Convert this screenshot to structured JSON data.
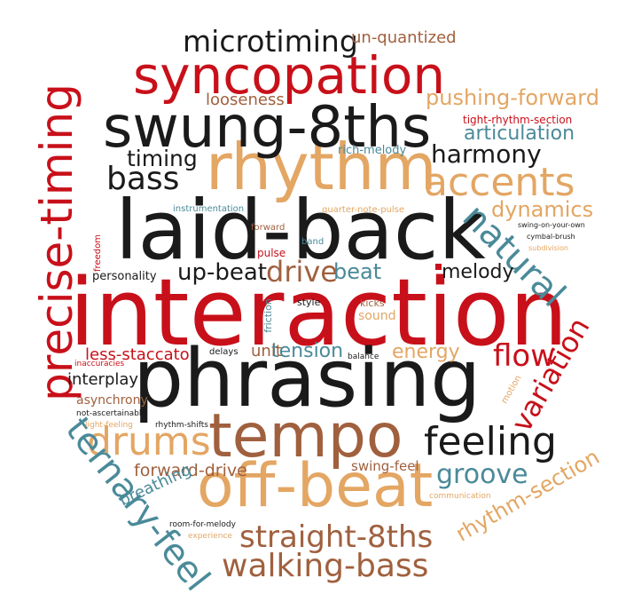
{
  "palette": {
    "red": "#c8101a",
    "black": "#1a1a1a",
    "tan": "#e3a663",
    "brown": "#a0603e",
    "teal": "#4a8a99"
  },
  "words": [
    {
      "text": "interaction",
      "color": "red"
    },
    {
      "text": "phrasing",
      "color": "black"
    },
    {
      "text": "laid-back",
      "color": "black"
    },
    {
      "text": "tempo",
      "color": "brown"
    },
    {
      "text": "rhythm",
      "color": "tan"
    },
    {
      "text": "swung-8ths",
      "color": "black"
    },
    {
      "text": "off-beat",
      "color": "tan"
    },
    {
      "text": "syncopation",
      "color": "red"
    },
    {
      "text": "precise-timing",
      "color": "red"
    },
    {
      "text": "drums",
      "color": "tan"
    },
    {
      "text": "feeling",
      "color": "black"
    },
    {
      "text": "natural",
      "color": "teal"
    },
    {
      "text": "ternary-feel",
      "color": "teal"
    },
    {
      "text": "accents",
      "color": "tan"
    },
    {
      "text": "straight-8ths",
      "color": "brown"
    },
    {
      "text": "walking-bass",
      "color": "brown"
    },
    {
      "text": "microtiming",
      "color": "black"
    },
    {
      "text": "bass",
      "color": "black"
    },
    {
      "text": "drive",
      "color": "brown"
    },
    {
      "text": "flow",
      "color": "red"
    },
    {
      "text": "variation",
      "color": "red"
    },
    {
      "text": "groove",
      "color": "teal"
    },
    {
      "text": "harmony",
      "color": "black"
    },
    {
      "text": "timing",
      "color": "black"
    },
    {
      "text": "rhythm-section",
      "color": "tan"
    },
    {
      "text": "pushing-forward",
      "color": "tan"
    },
    {
      "text": "articulation",
      "color": "teal"
    },
    {
      "text": "dynamics",
      "color": "tan"
    },
    {
      "text": "un-quantized",
      "color": "brown"
    },
    {
      "text": "looseness",
      "color": "brown"
    },
    {
      "text": "up-beat",
      "color": "black"
    },
    {
      "text": "beat",
      "color": "teal"
    },
    {
      "text": "melody",
      "color": "black"
    },
    {
      "text": "tension",
      "color": "teal"
    },
    {
      "text": "energy",
      "color": "tan"
    },
    {
      "text": "forward-drive",
      "color": "brown"
    },
    {
      "text": "breathing",
      "color": "teal"
    },
    {
      "text": "less-staccato",
      "color": "red"
    },
    {
      "text": "interplay",
      "color": "black"
    },
    {
      "text": "asynchrony",
      "color": "brown"
    },
    {
      "text": "unit",
      "color": "brown"
    },
    {
      "text": "sound",
      "color": "tan"
    },
    {
      "text": "swing-feel",
      "color": "brown"
    },
    {
      "text": "tight-rhythm-section",
      "color": "red"
    },
    {
      "text": "rich-melody",
      "color": "teal"
    },
    {
      "text": "quarter-note-pulse",
      "color": "tan"
    },
    {
      "text": "instrumentation",
      "color": "teal"
    },
    {
      "text": "swing-on-your-own",
      "color": "black"
    },
    {
      "text": "cymbal-brush",
      "color": "black"
    },
    {
      "text": "subdivision",
      "color": "tan"
    },
    {
      "text": "pulse",
      "color": "red"
    },
    {
      "text": "forward",
      "color": "brown"
    },
    {
      "text": "band",
      "color": "teal"
    },
    {
      "text": "personality",
      "color": "black"
    },
    {
      "text": "freedom",
      "color": "red"
    },
    {
      "text": "friction",
      "color": "teal"
    },
    {
      "text": "style",
      "color": "black"
    },
    {
      "text": "kicks",
      "color": "brown"
    },
    {
      "text": "delays",
      "color": "black"
    },
    {
      "text": "balance",
      "color": "black"
    },
    {
      "text": "inaccuracies",
      "color": "red"
    },
    {
      "text": "not-ascertainable",
      "color": "black"
    },
    {
      "text": "light-feeling",
      "color": "tan"
    },
    {
      "text": "rhythm-shifts",
      "color": "black"
    },
    {
      "text": "motion",
      "color": "tan"
    },
    {
      "text": "room-for-melody",
      "color": "black"
    },
    {
      "text": "experience",
      "color": "tan"
    },
    {
      "text": "communication",
      "color": "tan"
    }
  ]
}
